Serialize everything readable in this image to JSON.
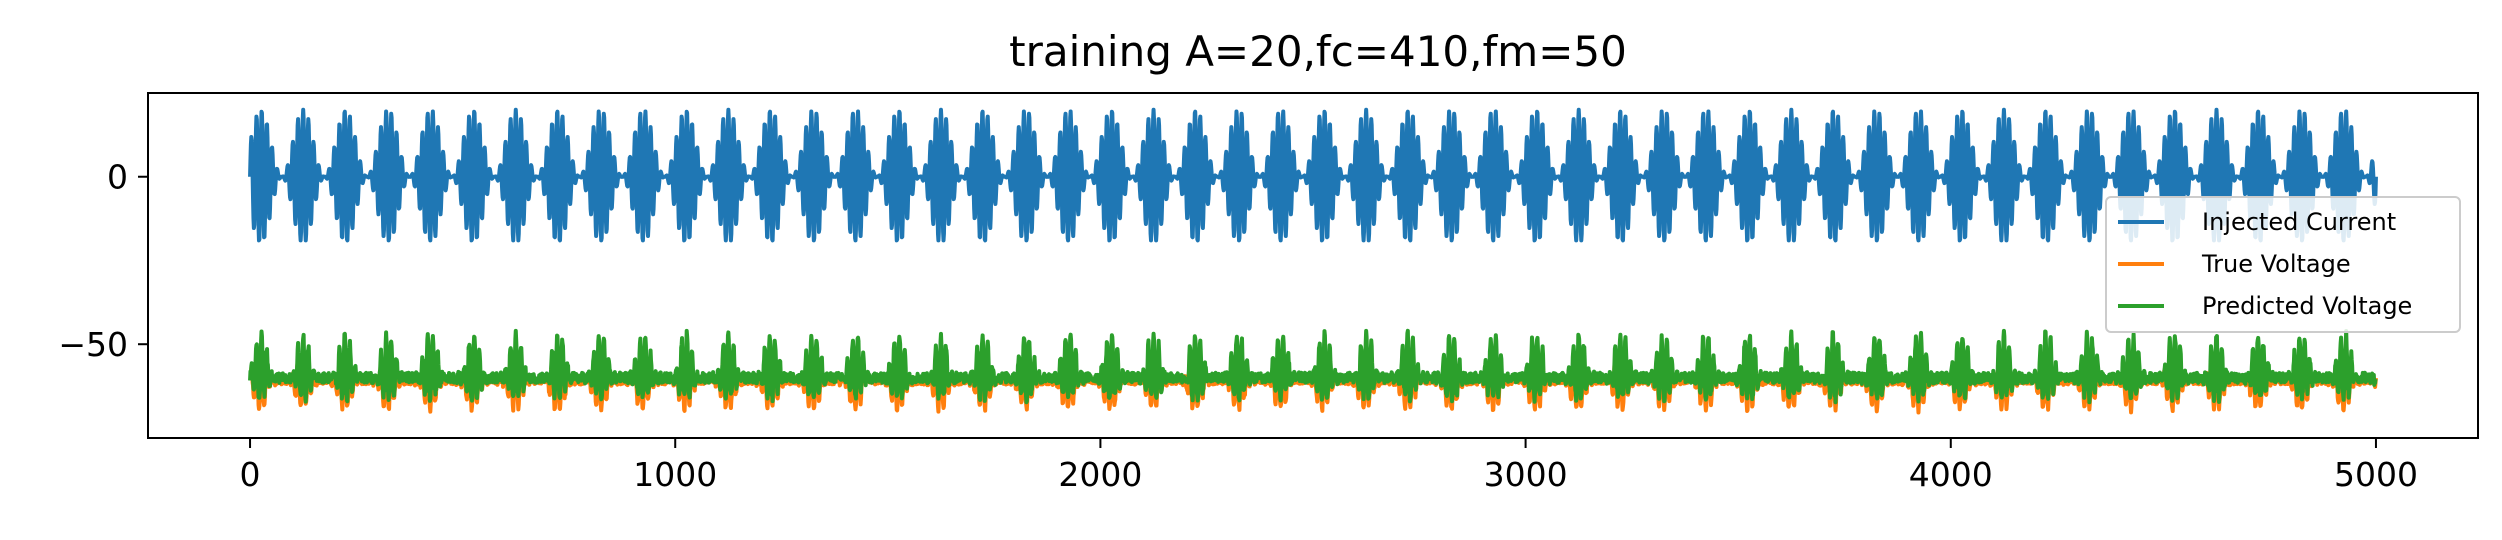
{
  "chart_data": {
    "type": "line",
    "title": "training A=20,fc=410,fm=50",
    "xlabel": "",
    "ylabel": "",
    "xlim": [
      -240,
      5240
    ],
    "ylim": [
      -78,
      25
    ],
    "x_ticks": [
      0,
      1000,
      2000,
      3000,
      4000,
      5000
    ],
    "x_tick_labels": [
      "0",
      "1000",
      "2000",
      "3000",
      "4000",
      "5000"
    ],
    "y_ticks": [
      0,
      -50
    ],
    "y_tick_labels": [
      "0",
      "−50"
    ],
    "grid": false,
    "legend_position": "center-right",
    "series": [
      {
        "name": "Injected Current",
        "color": "#1f77b4",
        "description_values": {
          "x_start": 0,
          "x_end": 5000,
          "n_points": 5000
        },
        "model": {
          "kind": "am",
          "amplitude": 20,
          "carrier_freq": 410,
          "mod_freq": 50,
          "offset": 0,
          "min": -19,
          "max": 20
        }
      },
      {
        "name": "True Voltage",
        "color": "#ff7f0e",
        "model": {
          "kind": "spiking",
          "baseline": -61,
          "min": -72,
          "max": -52
        }
      },
      {
        "name": "Predicted Voltage",
        "color": "#2ca02c",
        "model": {
          "kind": "spiking",
          "baseline": -60,
          "min": -68,
          "max": -46
        }
      }
    ]
  }
}
